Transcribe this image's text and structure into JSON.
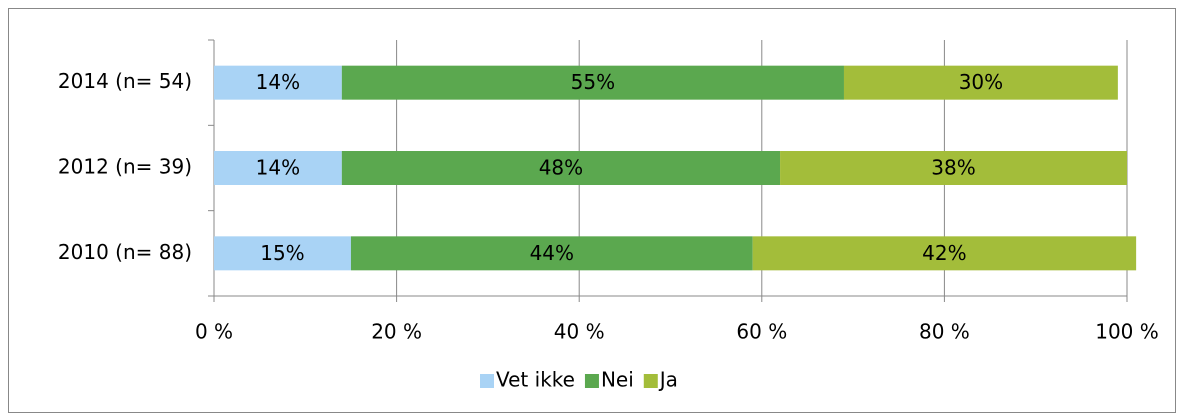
{
  "chart_data": {
    "type": "stacked_bar_horizontal",
    "categories": [
      "2014 (n= 54)",
      "2012 (n= 39)",
      "2010 (n= 88)"
    ],
    "series": [
      {
        "name": "Vet ikke",
        "color": "#a9d3f5",
        "values": [
          14,
          14,
          15
        ],
        "value_labels": [
          "14%",
          "14%",
          "15%"
        ]
      },
      {
        "name": "Nei",
        "color": "#5ba84f",
        "values": [
          55,
          48,
          44
        ],
        "value_labels": [
          "55%",
          "48%",
          "44%"
        ]
      },
      {
        "name": "Ja",
        "color": "#a3bd3a",
        "values": [
          30,
          38,
          42
        ],
        "value_labels": [
          "30%",
          "38%",
          "42%"
        ]
      }
    ],
    "xlim": [
      0,
      100
    ],
    "xticks": [
      {
        "value": 0,
        "label": "0 %"
      },
      {
        "value": 20,
        "label": "20 %"
      },
      {
        "value": 40,
        "label": "40 %"
      },
      {
        "value": 60,
        "label": "60 %"
      },
      {
        "value": 80,
        "label": "80 %"
      },
      {
        "value": 100,
        "label": "100 %"
      }
    ],
    "grid": true,
    "legend": "bottom"
  }
}
